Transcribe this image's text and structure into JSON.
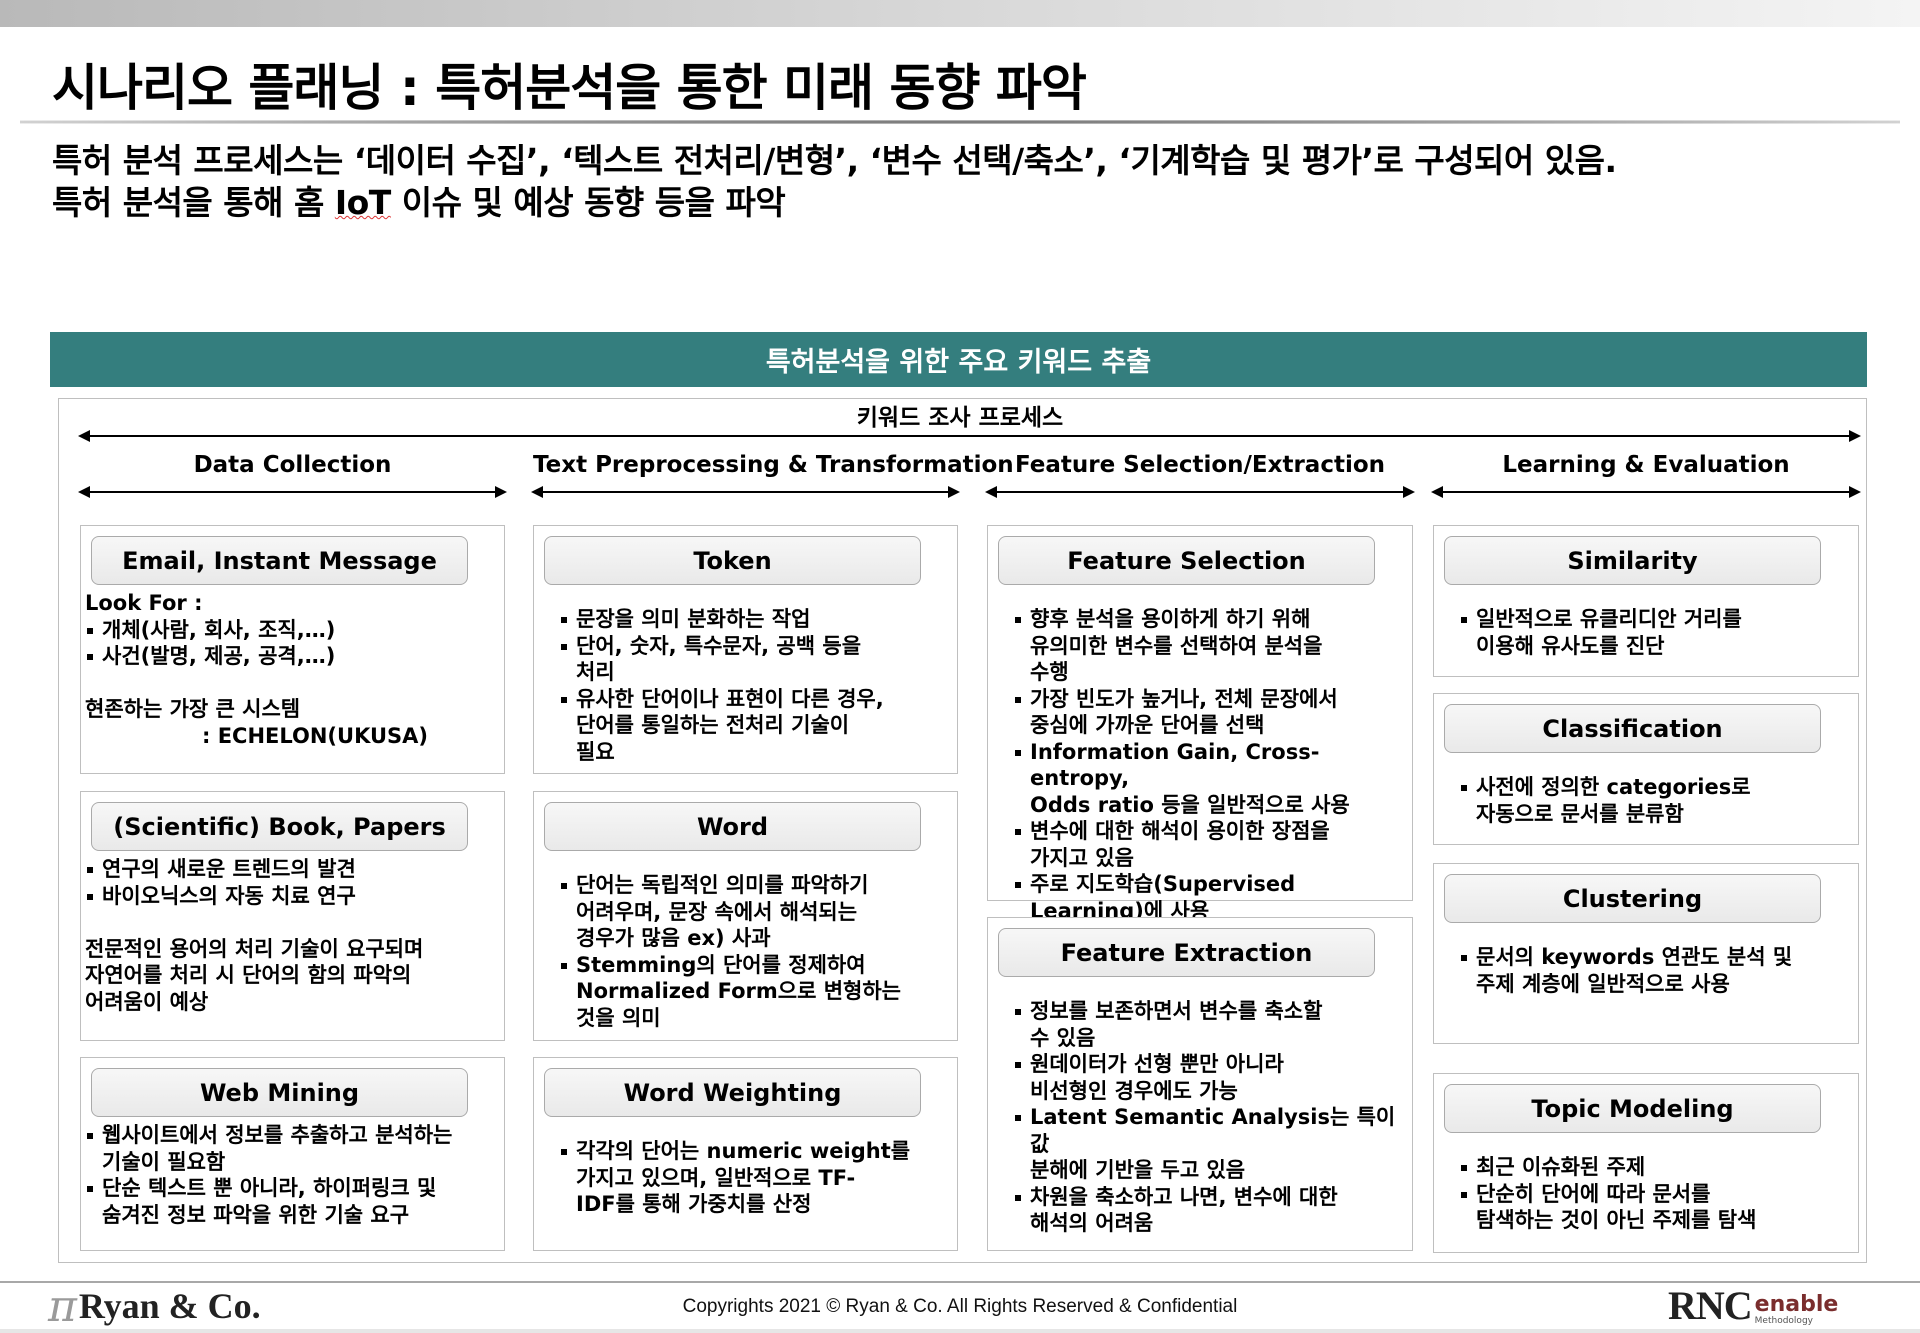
{
  "title": "시나리오 플래닝 : 특허분석을 통한 미래 동향 파악",
  "subtitle": {
    "line1": "특허 분석 프로세스는 ‘데이터 수집’, ‘텍스트 전처리/변형’, ‘변수 선택/축소’, ‘기계학습 및 평가’로 구성되어 있음.",
    "line2_pre": "특허 분석을 통해 홈 ",
    "line2_iot": "IoT",
    "line2_post": " 이슈 및 예상 동향 등을 파악"
  },
  "banner": "특허분석을 위한 주요 키워드 추출",
  "process_label": "키워드 조사 프로세스",
  "colors": {
    "banner": "#347e7e"
  },
  "columns": [
    {
      "header": "Data Collection",
      "boxes": [
        {
          "title": "Email, Instant Message",
          "tight": true,
          "items": [
            {
              "t": "Look For :"
            },
            {
              "b": true,
              "t": "개체(사람, 회사, 조직,…)"
            },
            {
              "b": true,
              "t": "사건(발명, 제공, 공격,…)"
            },
            {
              "t": ""
            },
            {
              "t": "현존하는 가장 큰 시스템"
            },
            {
              "t": "                : ECHELON(UKUSA)"
            }
          ]
        },
        {
          "title": "(Scientific) Book, Papers",
          "tight": true,
          "items": [
            {
              "b": true,
              "t": "연구의 새로운 트렌드의 발견"
            },
            {
              "b": true,
              "t": "바이오닉스의 자동 치료 연구"
            },
            {
              "t": ""
            },
            {
              "t": "전문적인 용어의 처리 기술이 요구되며\n자연어를 처리 시 단어의 함의 파악의\n어려움이 예상"
            }
          ]
        },
        {
          "title": "Web Mining",
          "tight": true,
          "items": [
            {
              "b": true,
              "t": "웹사이트에서 정보를 추출하고 분석하는\n기술이 필요함"
            },
            {
              "b": true,
              "t": "단순 텍스트 뿐 아니라, 하이퍼링크 및\n숨겨진 정보 파악을 위한 기술 요구"
            }
          ]
        }
      ]
    },
    {
      "header": "Text Preprocessing & Transformation",
      "boxes": [
        {
          "title": "Token",
          "items": [
            {
              "b": true,
              "t": "문장을 의미 분화하는 작업"
            },
            {
              "b": true,
              "t": "단어, 숫자, 특수문자, 공백 등을\n처리"
            },
            {
              "b": true,
              "t": "유사한 단어이나 표현이 다른 경우,\n단어를 통일하는 전처리 기술이\n필요"
            }
          ]
        },
        {
          "title": "Word",
          "items": [
            {
              "b": true,
              "t": "단어는 독립적인 의미를 파악하기\n어려우며, 문장 속에서 해석되는\n경우가 많음 ex) 사과"
            },
            {
              "b": true,
              "t": "Stemming의 단어를 정제하여\nNormalized Form으로 변형하는\n것을 의미"
            }
          ]
        },
        {
          "title": "Word Weighting",
          "items": [
            {
              "b": true,
              "t": "각각의 단어는 numeric weight를\n가지고 있으며, 일반적으로 TF-\nIDF를 통해 가중치를 산정"
            }
          ]
        }
      ]
    },
    {
      "header": "Feature Selection/Extraction",
      "boxes": [
        {
          "title": "Feature Selection",
          "items": [
            {
              "b": true,
              "t": "향후 분석을 용이하게 하기 위해\n유의미한 변수를 선택하여 분석을\n수행"
            },
            {
              "b": true,
              "t": "가장 빈도가 높거나, 전체 문장에서\n중심에 가까운 단어를 선택"
            },
            {
              "b": true,
              "t": "Information Gain, Cross-entropy,\nOdds ratio 등을 일반적으로 사용"
            },
            {
              "b": true,
              "t": "변수에 대한 해석이 용이한 장점을\n가지고 있음"
            },
            {
              "b": true,
              "t": "주로 지도학습(Supervised\nLearning)에 사용"
            }
          ]
        },
        {
          "title": "Feature Extraction",
          "items": [
            {
              "b": true,
              "t": "정보를 보존하면서 변수를 축소할\n수 있음"
            },
            {
              "b": true,
              "t": "원데이터가 선형 뿐만 아니라\n비선형인 경우에도 가능"
            },
            {
              "b": true,
              "t": "Latent Semantic Analysis는 특이값\n분해에 기반을 두고 있음"
            },
            {
              "b": true,
              "t": "차원을 축소하고 나면, 변수에 대한\n해석의 어려움"
            }
          ]
        }
      ]
    },
    {
      "header": "Learning & Evaluation",
      "boxes": [
        {
          "title": "Similarity",
          "items": [
            {
              "b": true,
              "t": "일반적으로 유클리디안 거리를\n이용해 유사도를 진단"
            }
          ]
        },
        {
          "title": "Classification",
          "items": [
            {
              "b": true,
              "t": "사전에 정의한 categories로\n자동으로 문서를 분류함"
            }
          ]
        },
        {
          "title": "Clustering",
          "items": [
            {
              "b": true,
              "t": "문서의 keywords 연관도 분석 및\n주제 계층에 일반적으로 사용"
            }
          ]
        },
        {
          "title": "Topic Modeling",
          "items": [
            {
              "b": true,
              "t": "최근 이슈화된 주제"
            },
            {
              "b": true,
              "t": "단순히 단어에 따라 문서를\n탐색하는 것이 아닌 주제를 탐색"
            }
          ]
        }
      ]
    }
  ],
  "footer": {
    "left_logo": "Ryan & Co.",
    "copyright": "Copyrights 2021 © Ryan & Co. All Rights Reserved & Confidential",
    "right_logo_main": "RNC",
    "right_logo_sub": "enable",
    "right_logo_small": "Methodology"
  }
}
